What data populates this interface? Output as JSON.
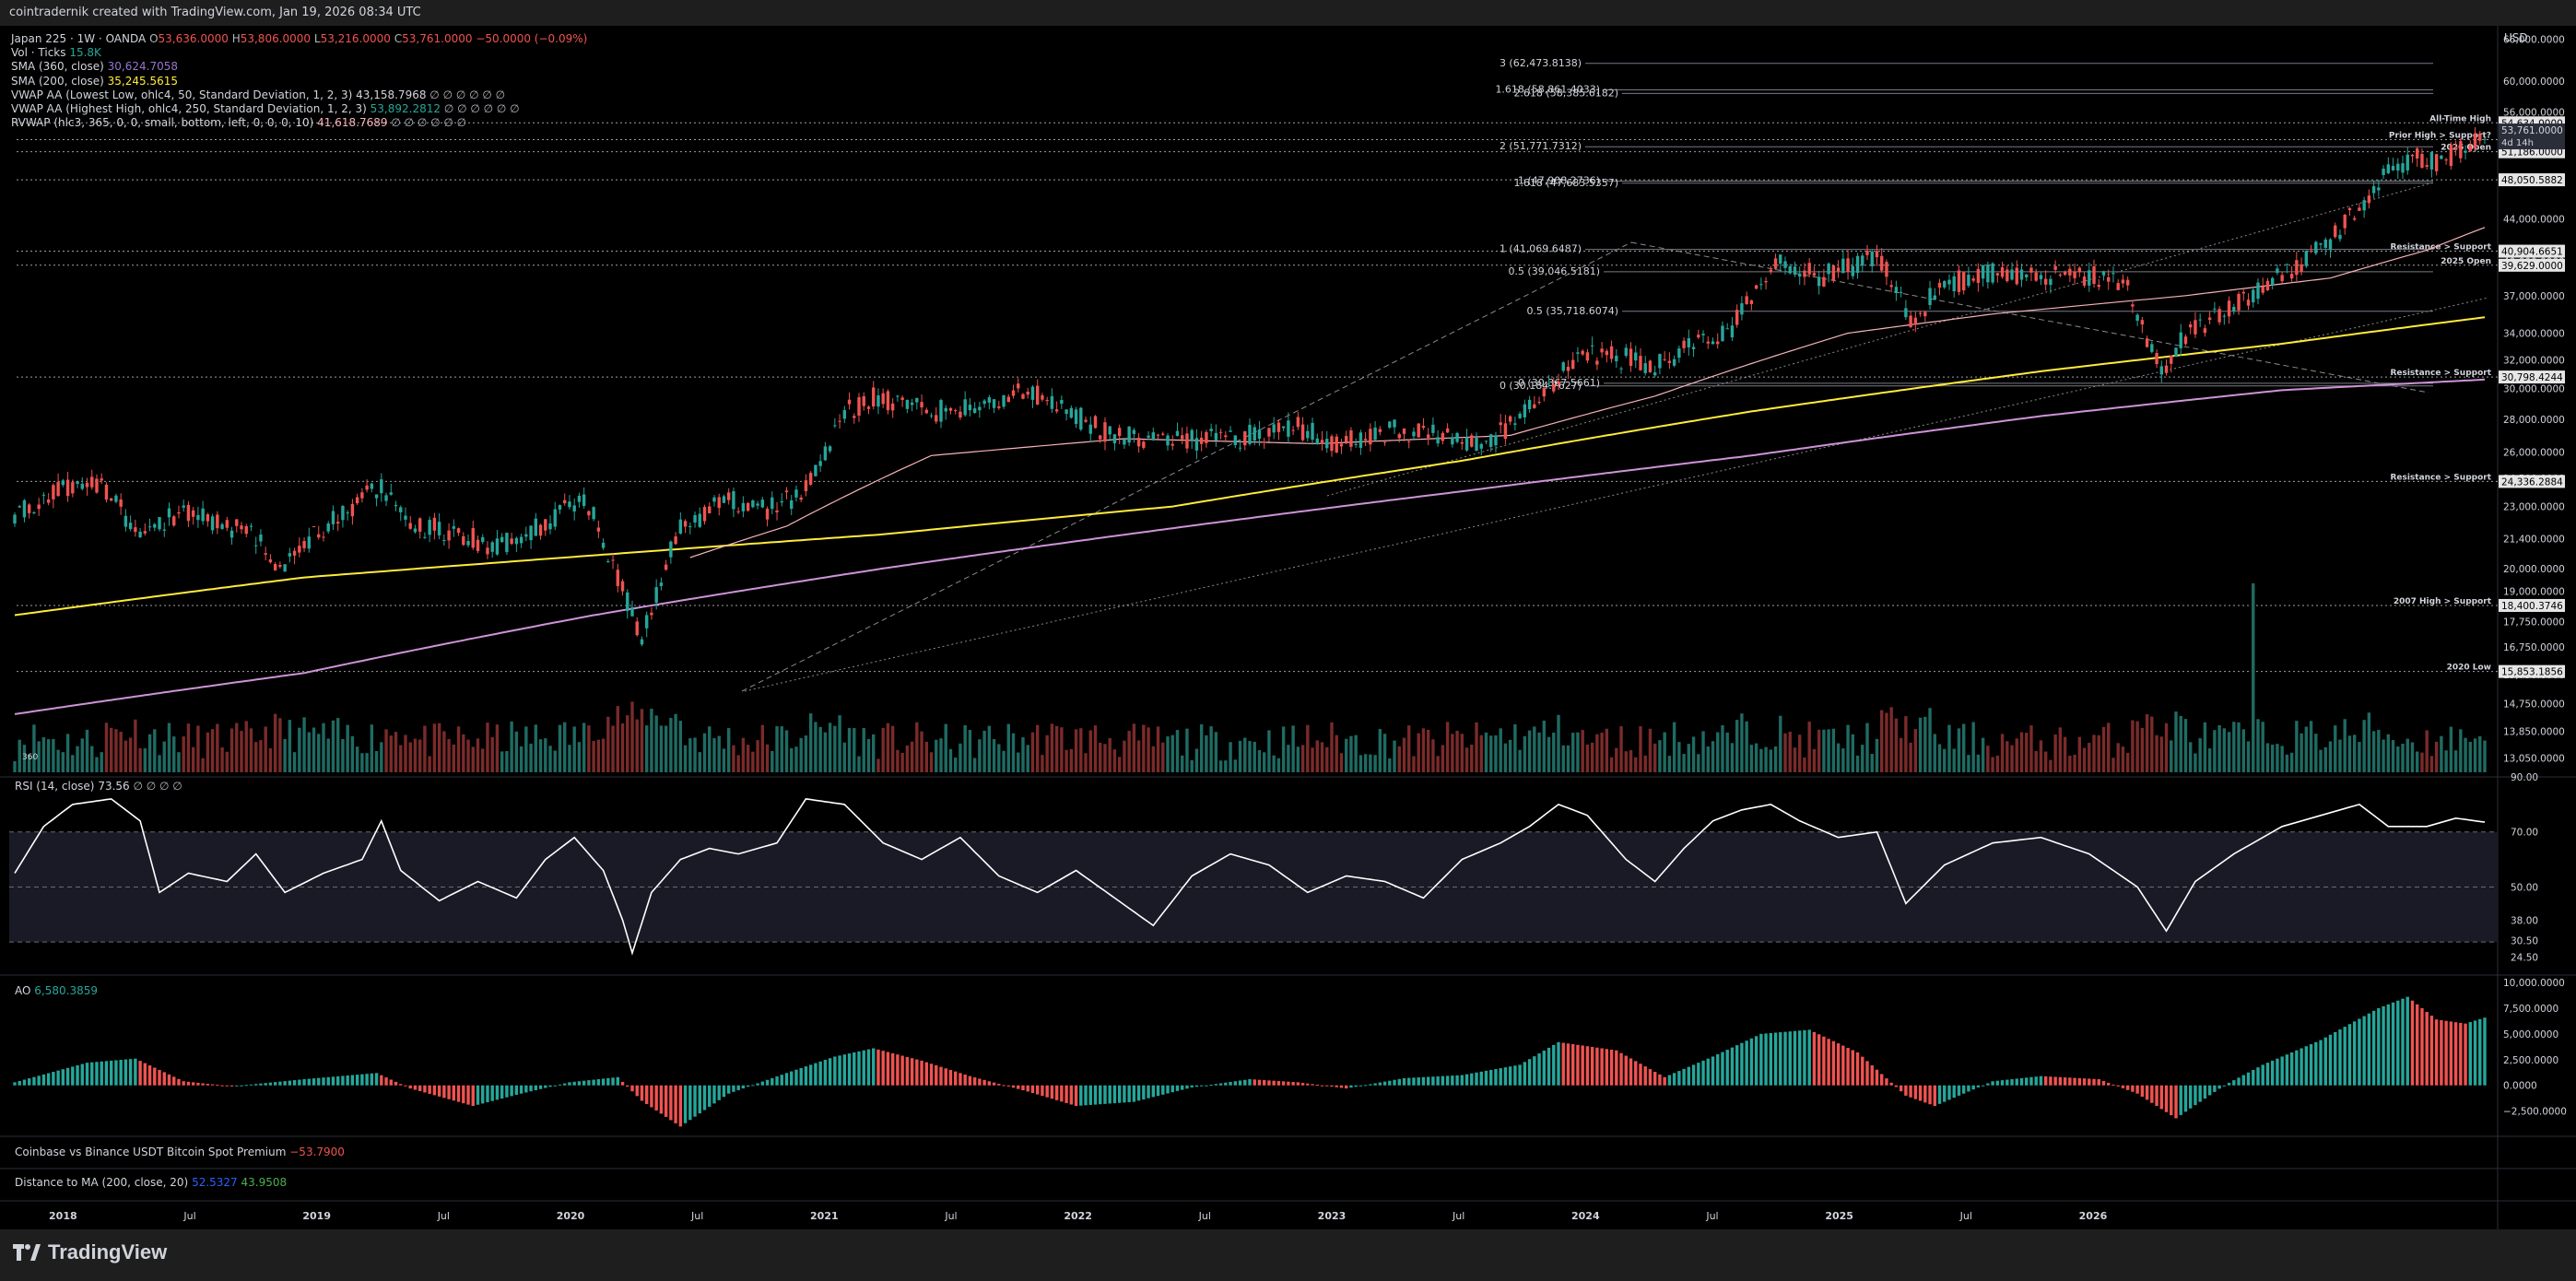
{
  "header": {
    "attribution": "cointradernik created with TradingView.com, Jan 19, 2026 08:34 UTC"
  },
  "footer": {
    "brand": "TradingView"
  },
  "colors": {
    "up": "#26a69a",
    "down": "#ef5350",
    "sma360": "#f7b3b8",
    "sma200": "#ffeb3b",
    "vwap_low": "#ce93d8",
    "rsi": "#ffffff",
    "grid": "#2a2a2a",
    "text": "#d1d4dc"
  },
  "legend": {
    "symbol": "Japan 225 · 1W · OANDA",
    "ohlc": {
      "o_label": "O",
      "o": "53,636.0000",
      "h_label": "H",
      "h": "53,806.0000",
      "l_label": "L",
      "l": "53,216.0000",
      "c_label": "C",
      "c": "53,761.0000",
      "chg": "−50.0000 (−0.09%)"
    },
    "vol_label": "Vol · Ticks",
    "vol_value": "15.8K",
    "sma360_label": "SMA (360, close)",
    "sma360_value": "30,624.7058",
    "sma200_label": "SMA (200, close)",
    "sma200_value": "35,245.5615",
    "vwap_low_label": "VWAP AA (Lowest Low, ohlc4, 50, Standard Deviation, 1, 2, 3)",
    "vwap_low_value": "43,158.7968",
    "vwap_low_tail": "∅ ∅ ∅ ∅ ∅ ∅",
    "vwap_high_label": "VWAP AA (Highest High, ohlc4, 250, Standard Deviation, 1, 2, 3)",
    "vwap_high_value": "53,892.2812",
    "vwap_high_tail": "∅ ∅ ∅ ∅ ∅ ∅",
    "rvwap_label": "RVWAP (hlc3, 365, 0, 0, small, bottom, left, 0, 0, 0, 10)",
    "rvwap_value": "41,618.7689",
    "rvwap_tail": "∅ ∅ ∅ ∅ ∅ ∅"
  },
  "rsi_legend": {
    "label": "RSI (14, close)",
    "value": "73.56",
    "tail": "∅ ∅ ∅ ∅"
  },
  "ao_legend": {
    "label": "AO",
    "value": "6,580.3859"
  },
  "premium_legend": {
    "label": "Coinbase vs Binance USDT Bitcoin Spot Premium",
    "value": "−53.7900"
  },
  "distance_legend": {
    "label": "Distance to MA (200, close, 20)",
    "value1": "52.5327",
    "value2": "43.9508"
  },
  "volume_badge": "360",
  "chart_data": [
    {
      "type": "candlestick",
      "title": "Japan 225 · 1W · OANDA",
      "currency": "USD",
      "scale": "log",
      "ylim": [
        12500,
        68000
      ],
      "x_tick_labels": [
        "2018",
        "Jul",
        "2019",
        "Jul",
        "2020",
        "Jul",
        "2021",
        "Jul",
        "2022",
        "Jul",
        "2023",
        "Jul",
        "2024",
        "Jul",
        "2025",
        "Jul",
        "2026"
      ],
      "y_tick_labels": [
        "13,050.0000",
        "13,850.0000",
        "14,750.0000",
        "15,750.0000",
        "16,750.0000",
        "17,750.0000",
        "19,000.0000",
        "20,000.0000",
        "21,400.0000",
        "23,000.0000",
        "24,500.0000",
        "26,000.0000",
        "28,000.0000",
        "30,000.0000",
        "32,000.0000",
        "34,000.0000",
        "37,000.0000",
        "40,000.0000",
        "44,000.0000",
        "48,000.0000",
        "52,000.0000",
        "56,000.0000",
        "60,000.0000",
        "66,000.0000"
      ],
      "price_path": [
        [
          0,
          22700
        ],
        [
          8,
          23800
        ],
        [
          18,
          24100
        ],
        [
          26,
          21500
        ],
        [
          34,
          22700
        ],
        [
          42,
          22200
        ],
        [
          50,
          21500
        ],
        [
          55,
          20000
        ],
        [
          63,
          21800
        ],
        [
          76,
          24100
        ],
        [
          82,
          22100
        ],
        [
          90,
          21800
        ],
        [
          100,
          21000
        ],
        [
          110,
          22100
        ],
        [
          118,
          23600
        ],
        [
          122,
          21400
        ],
        [
          126,
          19000
        ],
        [
          130,
          17000
        ],
        [
          138,
          22000
        ],
        [
          148,
          23300
        ],
        [
          156,
          22800
        ],
        [
          162,
          23500
        ],
        [
          168,
          26000
        ],
        [
          172,
          28500
        ],
        [
          178,
          29400
        ],
        [
          190,
          28500
        ],
        [
          200,
          28700
        ],
        [
          210,
          30000
        ],
        [
          218,
          28500
        ],
        [
          228,
          27000
        ],
        [
          238,
          26600
        ],
        [
          252,
          26800
        ],
        [
          266,
          27500
        ],
        [
          275,
          26500
        ],
        [
          286,
          27300
        ],
        [
          296,
          27000
        ],
        [
          304,
          26200
        ],
        [
          310,
          27600
        ],
        [
          316,
          29200
        ],
        [
          324,
          32600
        ],
        [
          336,
          32000
        ],
        [
          340,
          31500
        ],
        [
          348,
          33000
        ],
        [
          356,
          34500
        ],
        [
          366,
          39800
        ],
        [
          374,
          38600
        ],
        [
          382,
          39700
        ],
        [
          386,
          40800
        ],
        [
          390,
          37200
        ],
        [
          394,
          34500
        ],
        [
          398,
          37500
        ],
        [
          408,
          39000
        ],
        [
          420,
          38800
        ],
        [
          430,
          38700
        ],
        [
          438,
          37700
        ],
        [
          442,
          33000
        ],
        [
          446,
          31200
        ],
        [
          450,
          34000
        ],
        [
          460,
          36000
        ],
        [
          474,
          40000
        ],
        [
          480,
          42000
        ],
        [
          486,
          45000
        ],
        [
          492,
          49500
        ],
        [
          498,
          50500
        ],
        [
          502,
          50000
        ],
        [
          508,
          51500
        ],
        [
          512,
          53761
        ]
      ],
      "sma200_path": [
        [
          0,
          18000
        ],
        [
          60,
          19600
        ],
        [
          120,
          20600
        ],
        [
          180,
          21600
        ],
        [
          240,
          23000
        ],
        [
          300,
          25500
        ],
        [
          360,
          28500
        ],
        [
          420,
          31200
        ],
        [
          470,
          33200
        ],
        [
          512,
          35245
        ]
      ],
      "sma360_path": [
        [
          0,
          14400
        ],
        [
          60,
          15800
        ],
        [
          120,
          18000
        ],
        [
          180,
          20000
        ],
        [
          240,
          21900
        ],
        [
          300,
          23800
        ],
        [
          360,
          25800
        ],
        [
          420,
          28200
        ],
        [
          470,
          29900
        ],
        [
          512,
          30624
        ]
      ],
      "vwap_low_path": [
        [
          140,
          20500
        ],
        [
          160,
          22000
        ],
        [
          190,
          25800
        ],
        [
          230,
          26800
        ],
        [
          270,
          26500
        ],
        [
          310,
          27000
        ],
        [
          340,
          29500
        ],
        [
          380,
          34000
        ],
        [
          410,
          35500
        ],
        [
          450,
          37000
        ],
        [
          480,
          38500
        ],
        [
          500,
          41000
        ],
        [
          512,
          43158
        ]
      ],
      "horizontal_levels": [
        {
          "label": "All-Time High",
          "price_label": "54,634.0000",
          "value": 54634
        },
        {
          "label": "Prior High > Support?",
          "price_label": "52,605.6037",
          "value": 52605.6037
        },
        {
          "label": "2026 Open",
          "price_label": "51,186.0000",
          "value": 51186
        },
        {
          "label": "",
          "price_label": "48,050.5882",
          "value": 48050.5882
        },
        {
          "label": "Resistance > Support",
          "price_label": "40,904.6651",
          "value": 40904.6651
        },
        {
          "label": "2025 Open",
          "price_label": "39,629.0000",
          "value": 39629
        },
        {
          "label": "Resistance > Support",
          "price_label": "30,798.4244",
          "value": 30798.4244
        },
        {
          "label": "Resistance > Support",
          "price_label": "24,336.2884",
          "value": 24336.2884
        },
        {
          "label": "2007 High > Support",
          "price_label": "18,400.3746",
          "value": 18400.3746
        },
        {
          "label": "2020 Low",
          "price_label": "15,853.1856",
          "value": 15853.1856
        }
      ],
      "fib_labels": [
        {
          "text": "3 (62,473.8138)",
          "value": 62473.8138
        },
        {
          "text": "1.618 (58,861.4033)",
          "value": 58861.4033
        },
        {
          "text": "2.618 (58,385.6182)",
          "value": 58385.6182
        },
        {
          "text": "2 (51,771.7312)",
          "value": 51771.7312
        },
        {
          "text": "1 (47,908.2736)",
          "value": 47908.2736
        },
        {
          "text": "1.618 (47,683.5357)",
          "value": 47683.5357
        },
        {
          "text": "1 (41,069.6487)",
          "value": 41069.6487
        },
        {
          "text": "0.5 (39,046.5181)",
          "value": 39046.5181
        },
        {
          "text": "0.5 (35,718.6074)",
          "value": 35718.6074
        },
        {
          "text": "0 (30,184.7627)",
          "value": 30184.7627
        },
        {
          "text": "0 (30,367.5661)",
          "value": 30367.5661
        }
      ],
      "last_price": {
        "value": 53761,
        "label": "53,761.0000",
        "countdown": "4d 14h"
      }
    },
    {
      "type": "line",
      "title": "RSI (14, close)",
      "ylim": [
        18,
        90
      ],
      "y_tick_labels": [
        "90.00",
        "70.00",
        "50.00",
        "38.00",
        "30.50",
        "24.50"
      ],
      "bands": [
        30,
        70
      ],
      "series": [
        {
          "name": "RSI (14, close)",
          "points": [
            [
              0,
              55
            ],
            [
              6,
              72
            ],
            [
              12,
              80
            ],
            [
              20,
              82
            ],
            [
              26,
              74
            ],
            [
              30,
              48
            ],
            [
              36,
              55
            ],
            [
              44,
              52
            ],
            [
              50,
              62
            ],
            [
              56,
              48
            ],
            [
              64,
              55
            ],
            [
              72,
              60
            ],
            [
              76,
              74
            ],
            [
              80,
              56
            ],
            [
              88,
              45
            ],
            [
              96,
              52
            ],
            [
              104,
              46
            ],
            [
              110,
              60
            ],
            [
              116,
              68
            ],
            [
              122,
              56
            ],
            [
              126,
              38
            ],
            [
              128,
              26
            ],
            [
              132,
              48
            ],
            [
              138,
              60
            ],
            [
              144,
              64
            ],
            [
              150,
              62
            ],
            [
              158,
              66
            ],
            [
              164,
              82
            ],
            [
              172,
              80
            ],
            [
              180,
              66
            ],
            [
              188,
              60
            ],
            [
              196,
              68
            ],
            [
              204,
              54
            ],
            [
              212,
              48
            ],
            [
              220,
              56
            ],
            [
              228,
              46
            ],
            [
              236,
              36
            ],
            [
              244,
              54
            ],
            [
              252,
              62
            ],
            [
              260,
              58
            ],
            [
              268,
              48
            ],
            [
              276,
              54
            ],
            [
              284,
              52
            ],
            [
              292,
              46
            ],
            [
              300,
              60
            ],
            [
              308,
              66
            ],
            [
              314,
              72
            ],
            [
              320,
              80
            ],
            [
              326,
              76
            ],
            [
              334,
              60
            ],
            [
              340,
              52
            ],
            [
              346,
              64
            ],
            [
              352,
              74
            ],
            [
              358,
              78
            ],
            [
              364,
              80
            ],
            [
              370,
              74
            ],
            [
              378,
              68
            ],
            [
              386,
              70
            ],
            [
              392,
              44
            ],
            [
              400,
              58
            ],
            [
              410,
              66
            ],
            [
              420,
              68
            ],
            [
              430,
              62
            ],
            [
              440,
              50
            ],
            [
              446,
              34
            ],
            [
              452,
              52
            ],
            [
              460,
              62
            ],
            [
              470,
              72
            ],
            [
              478,
              76
            ],
            [
              486,
              80
            ],
            [
              492,
              72
            ],
            [
              500,
              72
            ],
            [
              506,
              75
            ],
            [
              512,
              73.56
            ]
          ]
        }
      ]
    },
    {
      "type": "bar",
      "title": "AO",
      "ylim": [
        -4500,
        10000
      ],
      "y_tick_labels": [
        "10,000.0000",
        "7,500.0000",
        "5,000.0000",
        "2,500.0000",
        "0.0000",
        "−2,500.0000"
      ],
      "series": [
        {
          "name": "AO",
          "points": [
            [
              0,
              300
            ],
            [
              15,
              2200
            ],
            [
              25,
              2600
            ],
            [
              35,
              400
            ],
            [
              45,
              -100
            ],
            [
              60,
              600
            ],
            [
              75,
              1200
            ],
            [
              82,
              -300
            ],
            [
              95,
              -2000
            ],
            [
              105,
              -800
            ],
            [
              115,
              300
            ],
            [
              125,
              800
            ],
            [
              130,
              -1500
            ],
            [
              138,
              -4000
            ],
            [
              148,
              -800
            ],
            [
              160,
              1200
            ],
            [
              170,
              2800
            ],
            [
              178,
              3600
            ],
            [
              188,
              2400
            ],
            [
              198,
              900
            ],
            [
              210,
              -600
            ],
            [
              220,
              -2000
            ],
            [
              232,
              -1600
            ],
            [
              244,
              -200
            ],
            [
              256,
              600
            ],
            [
              266,
              300
            ],
            [
              276,
              -300
            ],
            [
              288,
              700
            ],
            [
              300,
              1000
            ],
            [
              312,
              2000
            ],
            [
              320,
              4200
            ],
            [
              332,
              3400
            ],
            [
              342,
              800
            ],
            [
              352,
              2800
            ],
            [
              362,
              5000
            ],
            [
              372,
              5400
            ],
            [
              382,
              3200
            ],
            [
              392,
              -1000
            ],
            [
              398,
              -2000
            ],
            [
              410,
              400
            ],
            [
              420,
              900
            ],
            [
              432,
              600
            ],
            [
              440,
              -800
            ],
            [
              448,
              -3200
            ],
            [
              458,
              0
            ],
            [
              466,
              2000
            ],
            [
              478,
              4400
            ],
            [
              490,
              7500
            ],
            [
              496,
              8600
            ],
            [
              502,
              6400
            ],
            [
              508,
              6000
            ],
            [
              512,
              6580
            ]
          ]
        }
      ]
    }
  ]
}
